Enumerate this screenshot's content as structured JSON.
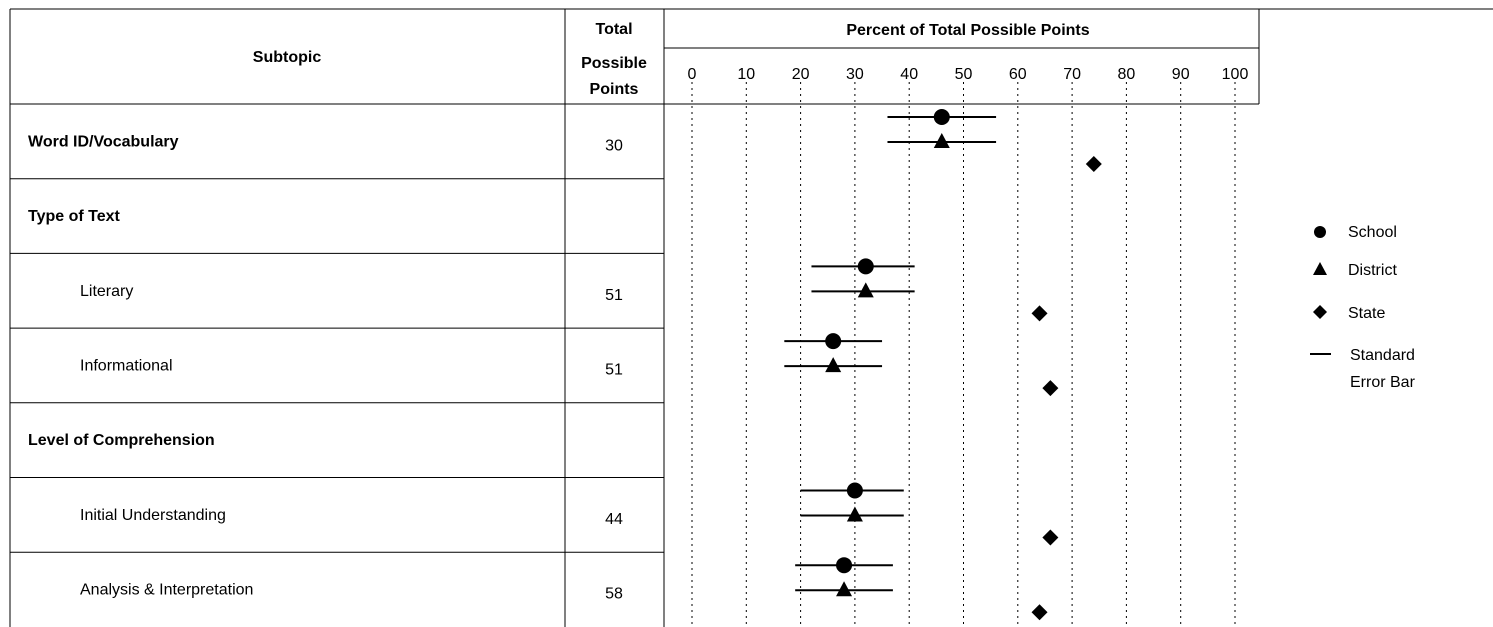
{
  "header": {
    "subtopic": "Subtopic",
    "total_line1": "Total",
    "total_line2": "Possible",
    "total_line3": "Points",
    "percent": "Percent of Total Possible Points"
  },
  "rows": [
    {
      "label": "Word ID/Vocabulary",
      "bold": true,
      "indent": false,
      "points": "30"
    },
    {
      "label": "Type of Text",
      "bold": true,
      "indent": false,
      "points": ""
    },
    {
      "label": "Literary",
      "bold": false,
      "indent": true,
      "points": "51"
    },
    {
      "label": "Informational",
      "bold": false,
      "indent": true,
      "points": "51"
    },
    {
      "label": "Level of Comprehension",
      "bold": true,
      "indent": false,
      "points": ""
    },
    {
      "label": "Initial Understanding",
      "bold": false,
      "indent": true,
      "points": "44"
    },
    {
      "label": "Analysis & Interpretation",
      "bold": false,
      "indent": true,
      "points": "58"
    }
  ],
  "legend": {
    "school": "School",
    "district": "District",
    "state": "State",
    "se_line1": "Standard",
    "se_line2": "Error Bar"
  },
  "chart_data": {
    "type": "scatter",
    "title": "Percent of Total Possible Points",
    "xlim": [
      0,
      100
    ],
    "xticks": [
      "0",
      "10",
      "20",
      "30",
      "40",
      "50",
      "60",
      "70",
      "80",
      "90",
      "100"
    ],
    "grid": true,
    "legend_position": "right",
    "categories": [
      "Word ID/Vocabulary",
      "Type of Text",
      "Literary",
      "Informational",
      "Level of Comprehension",
      "Initial Understanding",
      "Analysis & Interpretation"
    ],
    "series": [
      {
        "name": "School",
        "marker": "circle",
        "values": [
          46,
          null,
          32,
          26,
          null,
          30,
          28
        ],
        "error_low": [
          36,
          null,
          22,
          17,
          null,
          20,
          19
        ],
        "error_high": [
          56,
          null,
          41,
          35,
          null,
          39,
          37
        ]
      },
      {
        "name": "District",
        "marker": "triangle",
        "values": [
          46,
          null,
          32,
          26,
          null,
          30,
          28
        ],
        "error_low": [
          36,
          null,
          22,
          17,
          null,
          20,
          19
        ],
        "error_high": [
          56,
          null,
          41,
          35,
          null,
          39,
          37
        ]
      },
      {
        "name": "State",
        "marker": "diamond",
        "values": [
          74,
          null,
          64,
          66,
          null,
          66,
          64
        ]
      }
    ]
  }
}
